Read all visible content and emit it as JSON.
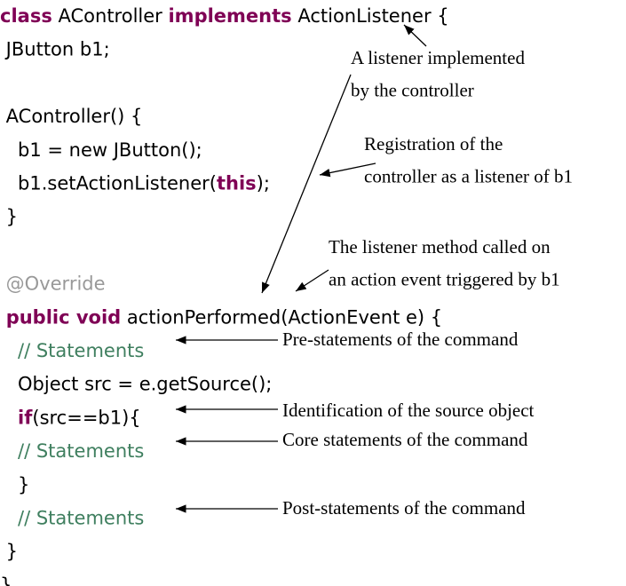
{
  "code": [
    [
      {
        "text": "class",
        "kind": "keyword"
      },
      {
        "text": " AController ",
        "kind": "plain"
      },
      {
        "text": "implements",
        "kind": "keyword"
      },
      {
        "text": " ActionListener {",
        "kind": "plain"
      }
    ],
    [
      {
        "text": " JButton b1;",
        "kind": "plain"
      }
    ],
    [],
    [
      {
        "text": " AController() {",
        "kind": "plain"
      }
    ],
    [
      {
        "text": "   b1 = new JButton();",
        "kind": "plain"
      }
    ],
    [
      {
        "text": "   b1.setActionListener(",
        "kind": "plain"
      },
      {
        "text": "this",
        "kind": "keyword"
      },
      {
        "text": ");",
        "kind": "plain"
      }
    ],
    [
      {
        "text": " }",
        "kind": "plain"
      }
    ],
    [],
    [
      {
        "text": " @Override",
        "kind": "annotation"
      }
    ],
    [
      {
        "text": " ",
        "kind": "plain"
      },
      {
        "text": "public void",
        "kind": "keyword"
      },
      {
        "text": " actionPerformed(ActionEvent e) {",
        "kind": "plain"
      }
    ],
    [
      {
        "text": "   // Statements",
        "kind": "comment"
      }
    ],
    [
      {
        "text": "   Object src = e.getSource();",
        "kind": "plain"
      }
    ],
    [
      {
        "text": "   ",
        "kind": "plain"
      },
      {
        "text": "if",
        "kind": "keyword"
      },
      {
        "text": "(src==b1){",
        "kind": "plain"
      }
    ],
    [
      {
        "text": "   // Statements",
        "kind": "comment"
      }
    ],
    [
      {
        "text": "   }",
        "kind": "plain"
      }
    ],
    [
      {
        "text": "   // Statements",
        "kind": "comment"
      }
    ],
    [
      {
        "text": " }",
        "kind": "plain"
      }
    ],
    [
      {
        "text": "}",
        "kind": "plain"
      }
    ]
  ],
  "notes": [
    {
      "lines": [
        "A listener implemented",
        "by the controller"
      ]
    },
    {
      "lines": [
        "Registration of the",
        "controller as a listener of b1"
      ]
    },
    {
      "lines": [
        "The listener method called on",
        "an action event triggered by b1"
      ]
    },
    {
      "lines": [
        "Pre-statements of the command"
      ]
    },
    {
      "lines": [
        "Identification of the source object"
      ]
    },
    {
      "lines": [
        "Core statements of the command"
      ]
    },
    {
      "lines": [
        "Post-statements of the command"
      ]
    }
  ]
}
